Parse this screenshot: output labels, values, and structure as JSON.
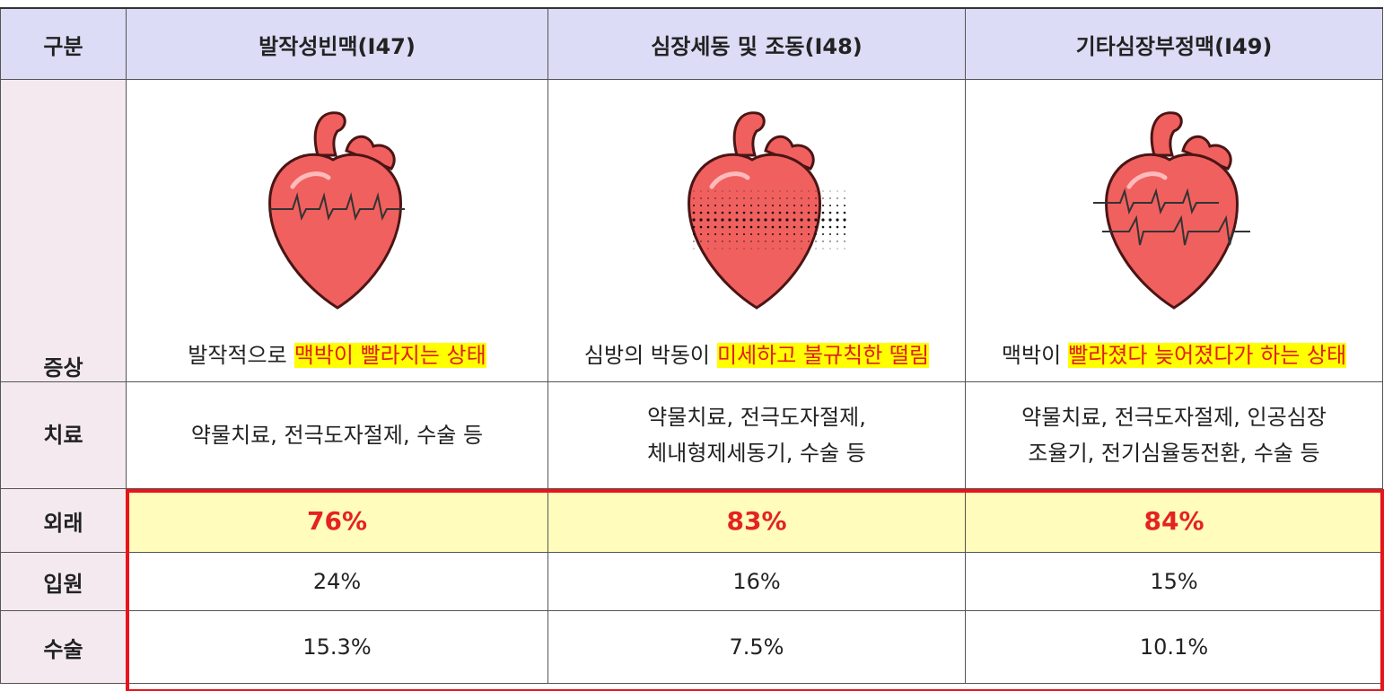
{
  "table": {
    "header": [
      "구분",
      "발작성빈맥(I47)",
      "심장세동 및 조동(I48)",
      "기타심장부정맥(I49)"
    ],
    "rows": [
      {
        "label": "증상",
        "cells": [
          {
            "text": "발작적으로",
            "highlight": "맥박이 빨라지는 상태"
          },
          {
            "text": "심방의 박동이",
            "highlight": "미세하고 불규칙한 떨림"
          },
          {
            "text": "맥박이",
            "highlight": "빨라졌다 늦어졌다가 하는 상태"
          }
        ]
      },
      {
        "label": "치료",
        "cells": [
          [
            "약물치료, 전극도자절제, 수술 등"
          ],
          [
            "약물치료, 전극도자절제,",
            "체내형제세동기, 수술 등"
          ],
          [
            "약물치료, 전극도자절제, 인공심장",
            "조율기, 전기심율동전환, 수술 등"
          ]
        ]
      },
      {
        "label": "외래",
        "cells": [
          "76%",
          "83%",
          "84%"
        ]
      },
      {
        "label": "입원",
        "cells": [
          "24%",
          "16%",
          "15%"
        ]
      },
      {
        "label": "수술",
        "cells": [
          "15.3%",
          "7.5%",
          "10.1%"
        ]
      }
    ]
  }
}
